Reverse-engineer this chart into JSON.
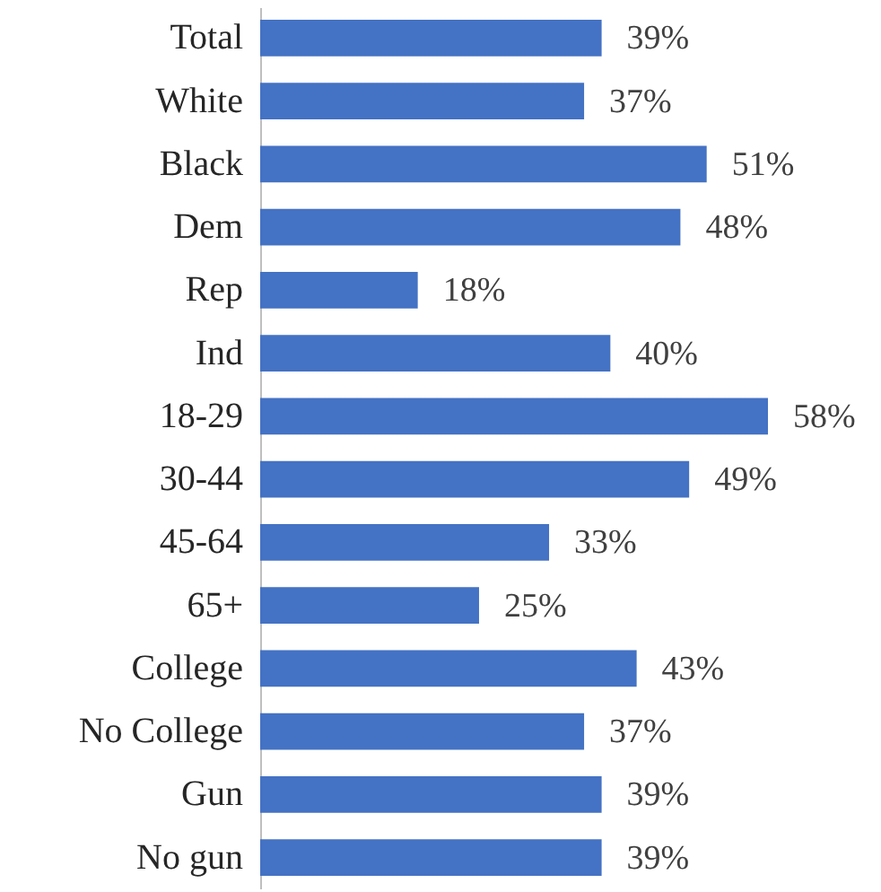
{
  "chart_data": {
    "type": "bar",
    "orientation": "horizontal",
    "categories": [
      "Total",
      "White",
      "Black",
      "Dem",
      "Rep",
      "Ind",
      "18-29",
      "30-44",
      "45-64",
      "65+",
      "College",
      "No College",
      "Gun",
      "No gun"
    ],
    "values": [
      39,
      37,
      51,
      48,
      18,
      40,
      58,
      49,
      33,
      25,
      43,
      37,
      39,
      39
    ],
    "value_labels": [
      "39%",
      "37%",
      "51%",
      "48%",
      "18%",
      "40%",
      "58%",
      "49%",
      "33%",
      "25%",
      "43%",
      "37%",
      "39%",
      "39%"
    ],
    "color": "#4472c4"
  }
}
